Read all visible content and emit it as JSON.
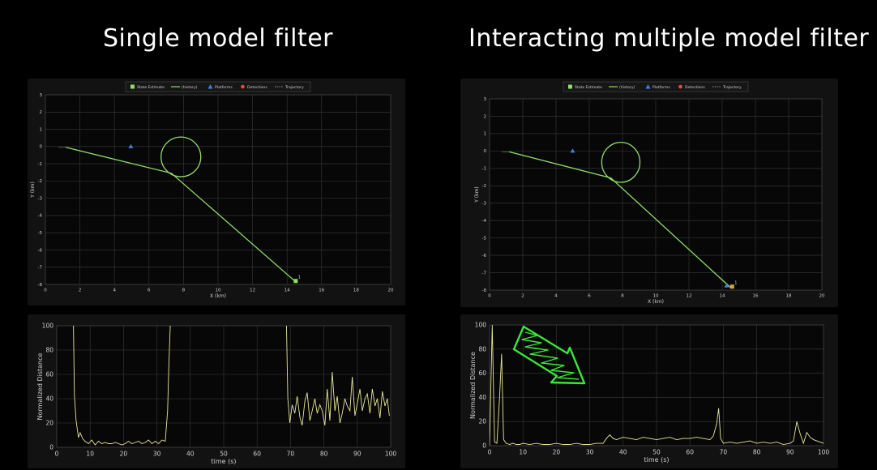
{
  "headings": {
    "left": "Single model filter",
    "right": "Interacting multiple model filter"
  },
  "colors": {
    "panel_bg": "#121212",
    "plot_bg": "#070707",
    "grid": "#3a3a3a",
    "axis_text": "#cfcfcf",
    "track": "#8fdc6a",
    "platform": "#3f7fe0",
    "detection": "#e0503a",
    "distance": "#e8e79a",
    "marker": "#d4a24a",
    "annotation": "#39e639"
  },
  "chart_data": [
    {
      "id": "left-track",
      "type": "line",
      "xlabel": "X (km)",
      "ylabel": "Y (km)",
      "xlim": [
        0,
        20
      ],
      "ylim": [
        -8,
        3
      ],
      "xticks": [
        0,
        2,
        4,
        6,
        8,
        10,
        12,
        14,
        16,
        18,
        20
      ],
      "yticks": [
        3,
        2,
        1,
        0,
        -1,
        -2,
        -3,
        -4,
        -5,
        -6,
        -7,
        -8
      ],
      "grid": true,
      "legend": [
        "State Estimate",
        "(history)",
        "Platforms",
        "Detections",
        "Trajectory"
      ],
      "legend_position": "top",
      "track_points": [
        [
          1.2,
          -0.05
        ],
        [
          7.3,
          -1.55
        ],
        [
          14.5,
          -7.85
        ]
      ],
      "circle": {
        "cx": 7.85,
        "cy": -0.6,
        "r": 1.15
      },
      "platform": [
        4.95,
        0.0
      ],
      "end_marker": [
        14.5,
        -7.8
      ],
      "end_label": "1"
    },
    {
      "id": "right-track",
      "type": "line",
      "xlabel": "X (km)",
      "ylabel": "Y (km)",
      "xlim": [
        0,
        20
      ],
      "ylim": [
        -8,
        3
      ],
      "xticks": [
        0,
        2,
        4,
        6,
        8,
        10,
        12,
        14,
        16,
        18,
        20
      ],
      "yticks": [
        3,
        2,
        1,
        0,
        -1,
        -2,
        -3,
        -4,
        -5,
        -6,
        -7,
        -8
      ],
      "grid": true,
      "legend": [
        "State Estimate",
        "(history)",
        "Platforms",
        "Detections",
        "Trajectory"
      ],
      "legend_position": "top",
      "track_points": [
        [
          1.2,
          -0.05
        ],
        [
          7.3,
          -1.55
        ],
        [
          14.5,
          -7.85
        ]
      ],
      "circle": {
        "cx": 7.9,
        "cy": -0.65,
        "r": 1.15
      },
      "platform": [
        5.0,
        0.0
      ],
      "end_marker": [
        14.6,
        -7.8
      ],
      "end_label": "1"
    },
    {
      "id": "left-dist",
      "type": "line",
      "xlabel": "time (s)",
      "ylabel": "Normalized Distance",
      "xlim": [
        0,
        100
      ],
      "ylim": [
        0,
        100
      ],
      "xticks": [
        0,
        10,
        20,
        30,
        40,
        50,
        60,
        70,
        80,
        90,
        100
      ],
      "yticks": [
        0,
        20,
        40,
        60,
        80,
        100
      ],
      "grid": true,
      "segments": [
        {
          "x": [
            5,
            5.3,
            5.8,
            6.5,
            7,
            7.8,
            8.5,
            9.5,
            10.5,
            11.5,
            12.5,
            13.5,
            14.5,
            15.5,
            16.5,
            17.5,
            18.5,
            19.5,
            20.5,
            21.5,
            22.5,
            23.5,
            24.5,
            25.5,
            26.5,
            27.5,
            28.5,
            29.5,
            30.5,
            31.5,
            32.5,
            33.2,
            33.6,
            34
          ],
          "y": [
            100,
            42,
            22,
            8,
            12,
            7,
            5,
            3,
            6,
            2,
            5,
            3,
            4,
            3,
            3,
            4,
            3,
            2,
            3,
            5,
            3,
            4,
            5,
            3,
            4,
            6,
            3,
            5,
            3,
            6,
            5,
            30,
            70,
            100
          ]
        },
        {
          "x": [
            68.8,
            69.2,
            69.8,
            70.5,
            71.3,
            72,
            72.8,
            73.5,
            74.3,
            75,
            75.8,
            76.5,
            77.3,
            78,
            78.8,
            79.5,
            80.3,
            81,
            81.8,
            82.5,
            83.3,
            84,
            84.8,
            85.5,
            86.3,
            87,
            87.8,
            88.5,
            89.3,
            90,
            90.8,
            91.5,
            92.3,
            93,
            93.8,
            94.5,
            95.3,
            96,
            96.8,
            97.5,
            98.3,
            99,
            99.6
          ],
          "y": [
            100,
            40,
            20,
            35,
            28,
            42,
            25,
            18,
            38,
            45,
            22,
            30,
            40,
            28,
            35,
            30,
            18,
            48,
            22,
            62,
            30,
            42,
            20,
            28,
            40,
            34,
            30,
            58,
            26,
            36,
            48,
            30,
            40,
            44,
            28,
            48,
            34,
            40,
            24,
            46,
            34,
            40,
            26
          ]
        }
      ]
    },
    {
      "id": "right-dist",
      "type": "line",
      "xlabel": "time (s)",
      "ylabel": "Normalized Distance",
      "xlim": [
        0,
        100
      ],
      "ylim": [
        0,
        100
      ],
      "xticks": [
        0,
        10,
        20,
        30,
        40,
        50,
        60,
        70,
        80,
        90,
        100
      ],
      "yticks": [
        0,
        20,
        40,
        60,
        80,
        100
      ],
      "grid": true,
      "segments": [
        {
          "x": [
            0,
            0.8,
            1.5,
            2.2,
            3,
            3.6,
            4.2,
            5,
            6,
            7,
            8,
            9,
            10,
            12,
            14,
            16,
            18,
            20,
            22,
            24,
            26,
            28,
            30,
            32,
            34,
            35,
            36,
            37,
            38,
            40,
            42,
            44,
            46,
            48,
            50,
            52,
            54,
            56,
            58,
            60,
            62,
            64,
            66,
            67,
            68,
            68.6,
            69.2,
            70,
            72,
            74,
            76,
            78,
            80,
            82,
            84,
            86,
            88,
            90,
            91,
            92,
            93,
            94,
            95,
            96,
            97,
            98,
            99,
            100
          ],
          "y": [
            0,
            100,
            3,
            2,
            40,
            76,
            5,
            2,
            1,
            2,
            1,
            1,
            2,
            1,
            2,
            1,
            1,
            2,
            1,
            1,
            2,
            1,
            1,
            2,
            2,
            6,
            9,
            6,
            5,
            7,
            6,
            5,
            7,
            6,
            5,
            6,
            7,
            5,
            6,
            6,
            7,
            6,
            5,
            8,
            18,
            31,
            6,
            2,
            3,
            2,
            3,
            4,
            2,
            3,
            2,
            3,
            1,
            2,
            4,
            20,
            10,
            2,
            11,
            7,
            5,
            4,
            3,
            2
          ]
        }
      ],
      "annotation": "arrow"
    }
  ]
}
